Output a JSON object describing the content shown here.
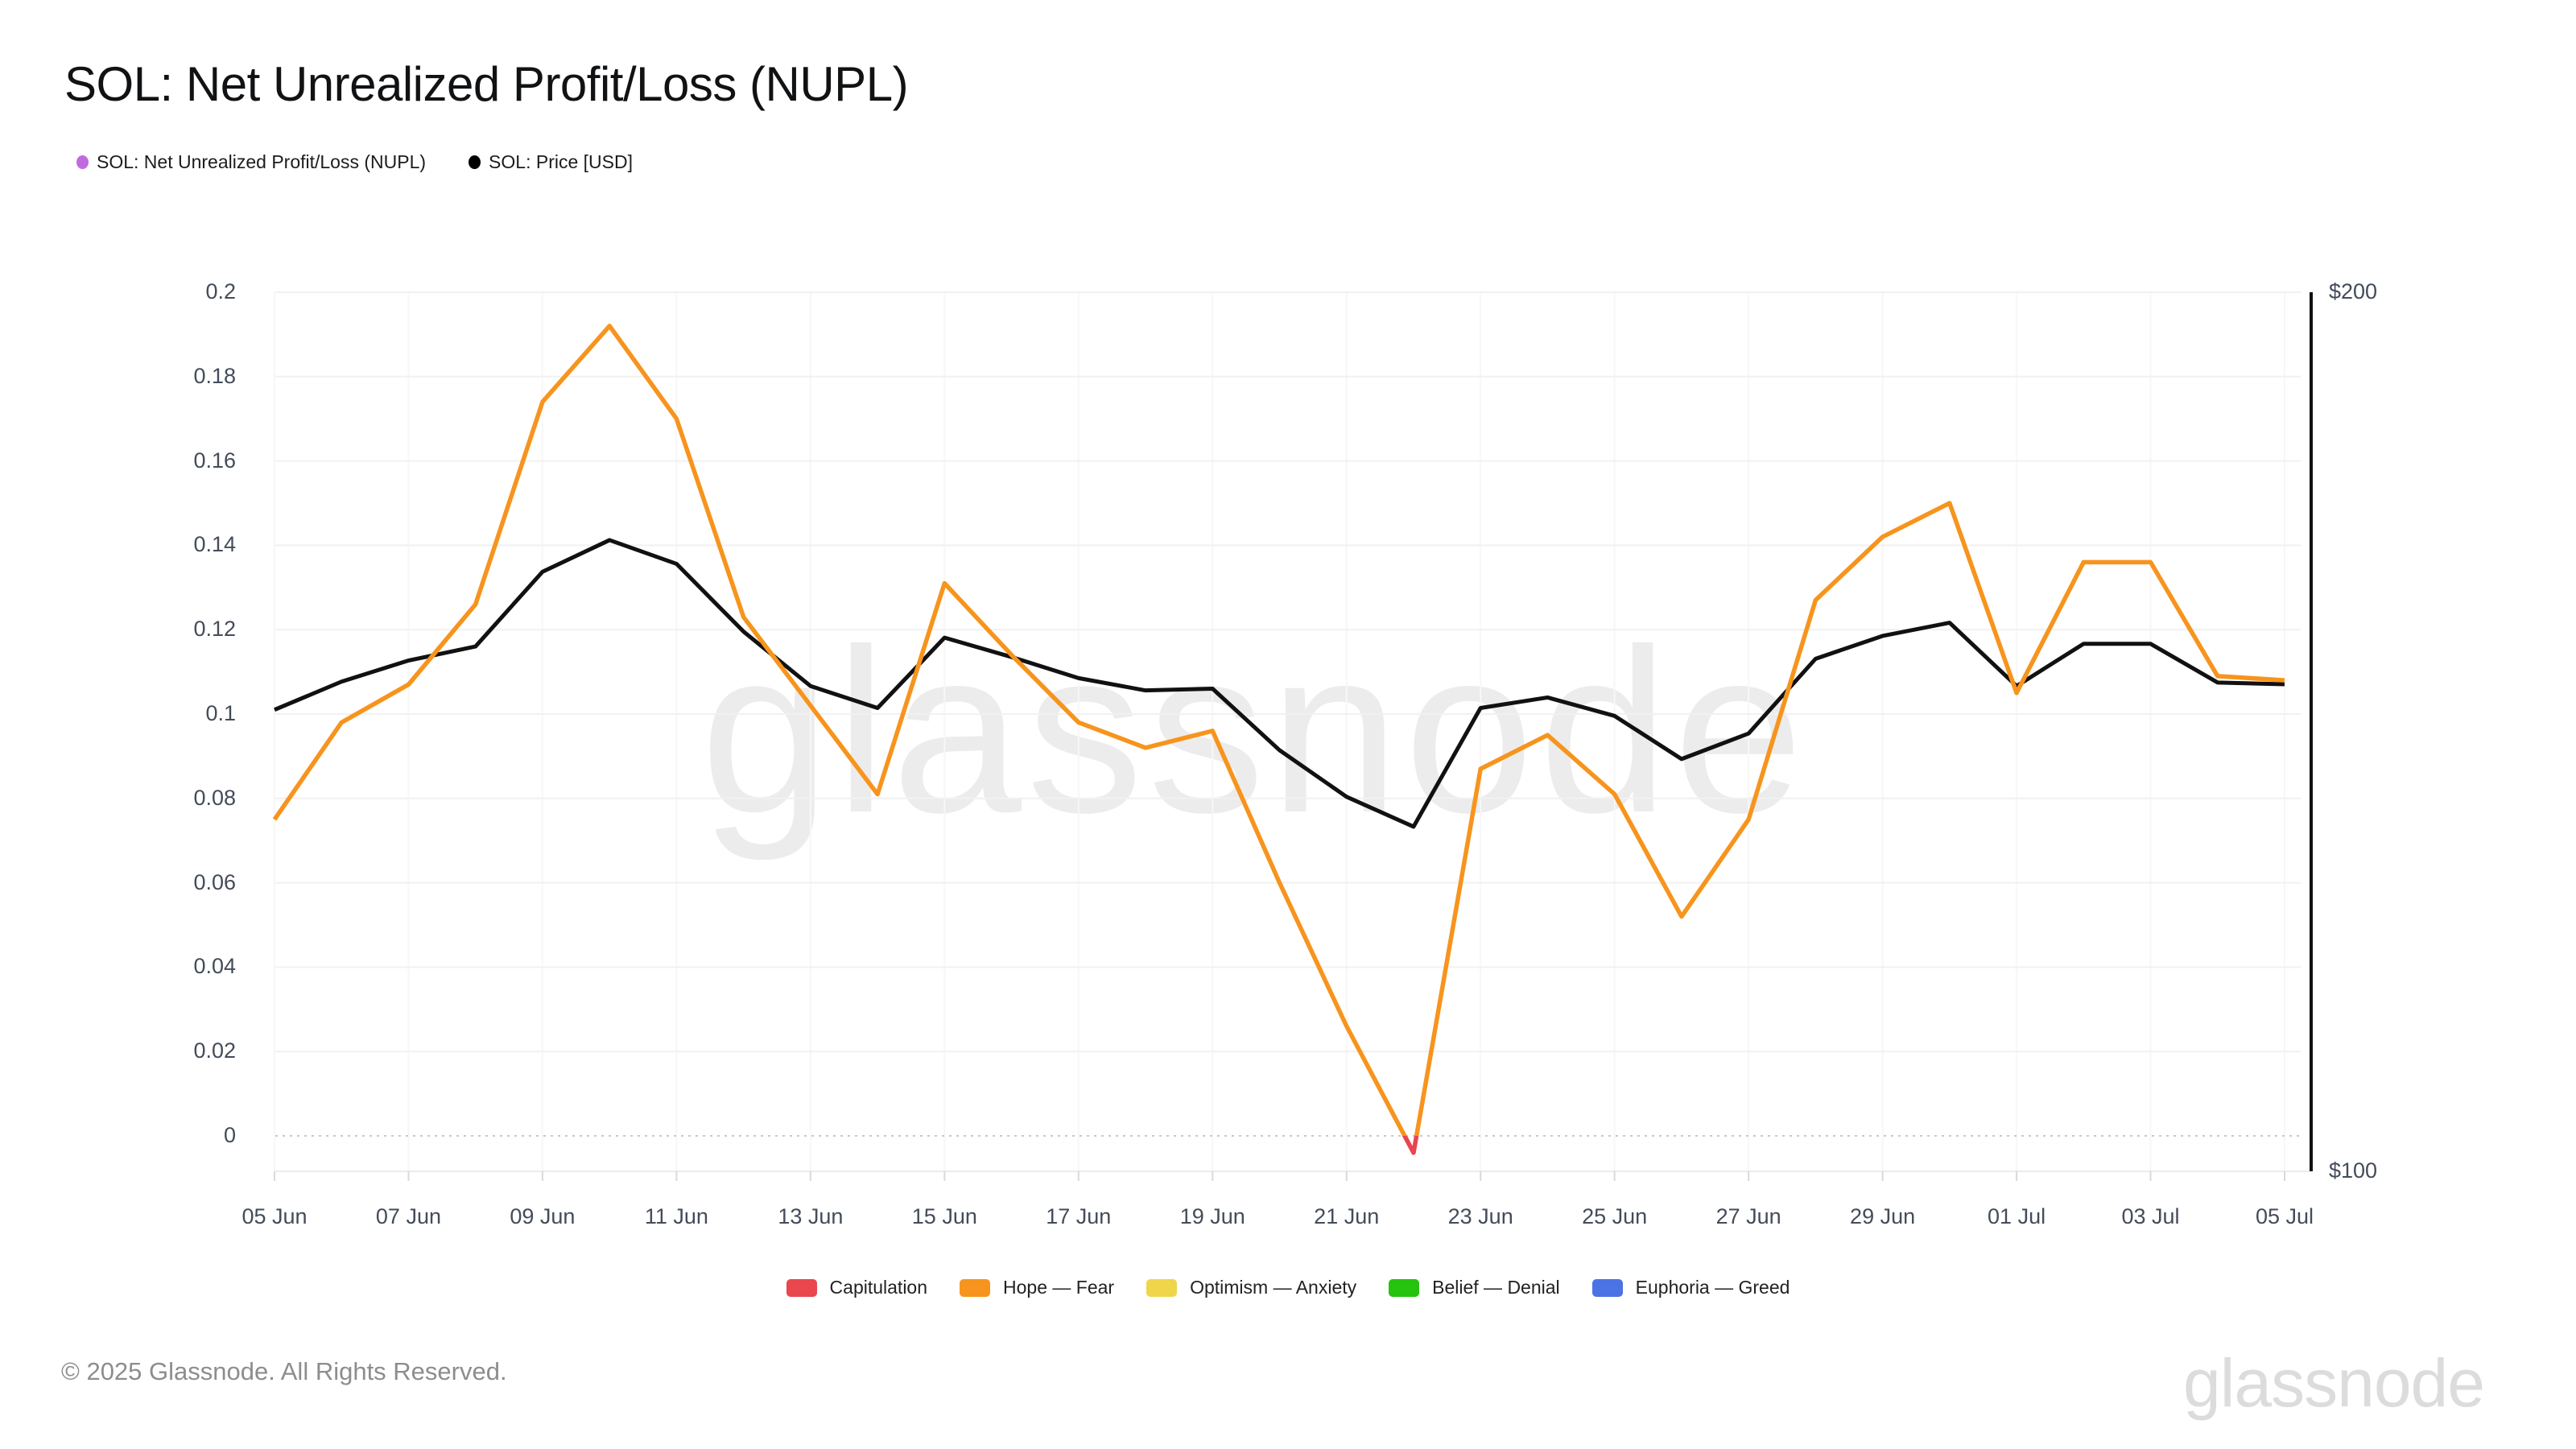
{
  "header": {
    "title": "SOL: Net Unrealized Profit/Loss (NUPL)"
  },
  "top_legend": [
    {
      "label": "SOL: Net Unrealized Profit/Loss (NUPL)",
      "color": "#c06ae0"
    },
    {
      "label": "SOL: Price [USD]",
      "color": "#000000"
    }
  ],
  "chart_data": {
    "type": "line",
    "title": "SOL: Net Unrealized Profit/Loss (NUPL)",
    "x": [
      "05 Jun",
      "06 Jun",
      "07 Jun",
      "08 Jun",
      "09 Jun",
      "10 Jun",
      "11 Jun",
      "12 Jun",
      "13 Jun",
      "14 Jun",
      "15 Jun",
      "16 Jun",
      "17 Jun",
      "18 Jun",
      "19 Jun",
      "20 Jun",
      "21 Jun",
      "22 Jun",
      "23 Jun",
      "24 Jun",
      "25 Jun",
      "26 Jun",
      "27 Jun",
      "28 Jun",
      "29 Jun",
      "30 Jun",
      "01 Jul",
      "02 Jul",
      "03 Jul",
      "04 Jul",
      "05 Jul"
    ],
    "x_tick_labels": [
      "05 Jun",
      "07 Jun",
      "09 Jun",
      "11 Jun",
      "13 Jun",
      "15 Jun",
      "17 Jun",
      "19 Jun",
      "21 Jun",
      "23 Jun",
      "25 Jun",
      "27 Jun",
      "29 Jun",
      "01 Jul",
      "03 Jul",
      "05 Jul"
    ],
    "series": [
      {
        "name": "SOL: Net Unrealized Profit/Loss (NUPL)",
        "axis": "left",
        "color": "#F7941D",
        "below_zero_color": "#E8454F",
        "values": [
          0.075,
          0.098,
          0.107,
          0.126,
          0.174,
          0.192,
          0.17,
          0.123,
          0.102,
          0.081,
          0.131,
          0.114,
          0.098,
          0.092,
          0.096,
          0.06,
          0.026,
          -0.004,
          0.087,
          0.095,
          0.081,
          0.052,
          0.075,
          0.127,
          0.142,
          0.15,
          0.105,
          0.136,
          0.136,
          0.109,
          0.108
        ]
      },
      {
        "name": "SOL: Price [USD]",
        "axis": "right",
        "color": "#111111",
        "values": [
          152.5,
          155.7,
          158.1,
          159.7,
          168.2,
          171.8,
          169.1,
          161.4,
          155.2,
          152.7,
          160.7,
          158.5,
          156.1,
          154.7,
          154.9,
          147.9,
          142.6,
          139.2,
          152.7,
          153.9,
          151.8,
          146.9,
          149.8,
          158.3,
          160.9,
          162.4,
          155.2,
          160.0,
          160.0,
          155.6,
          155.4
        ]
      }
    ],
    "left_axis": {
      "tick_labels": [
        "0.2",
        "0.18",
        "0.16",
        "0.14",
        "0.12",
        "0.1",
        "0.08",
        "0.06",
        "0.04",
        "0.02",
        "0"
      ],
      "max": 0.2,
      "zero_line_dotted": true
    },
    "right_axis": {
      "tick_labels": [
        "$200",
        "$100"
      ],
      "tick_values": [
        200,
        100
      ],
      "min": 100,
      "max": 200
    },
    "grid": true,
    "legend_position": "bottom",
    "zones_legend": [
      {
        "label": "Capitulation",
        "color": "#E8474E"
      },
      {
        "label": "Hope — Fear",
        "color": "#F7941D"
      },
      {
        "label": "Optimism — Anxiety",
        "color": "#EFD54A"
      },
      {
        "label": "Belief — Denial",
        "color": "#25C30E"
      },
      {
        "label": "Euphoria — Greed",
        "color": "#4C73E6"
      }
    ],
    "watermark": "glassnode"
  },
  "footer": {
    "copyright": "© 2025 Glassnode. All Rights Reserved.",
    "brand": "glassnode"
  }
}
